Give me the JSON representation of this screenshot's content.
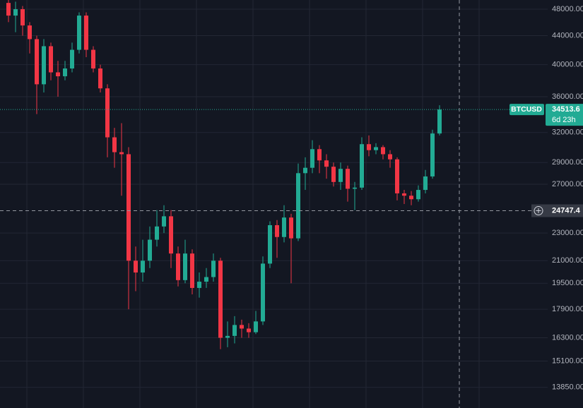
{
  "chart_data": {
    "type": "candlestick",
    "symbol": "BTCUSD",
    "last_price_label": "34513.6",
    "countdown": "6d 23h",
    "crosshair": {
      "value": 24747.4,
      "label": "24747.4"
    },
    "log_scale": true,
    "grid": true,
    "up_color": "#22ab94",
    "down_color": "#f23645",
    "ylim": [
      12940,
      49470
    ],
    "yticks": [
      {
        "value": 48000,
        "label": "48000.00"
      },
      {
        "value": 44000,
        "label": "44000.00"
      },
      {
        "value": 40000,
        "label": "40000.00"
      },
      {
        "value": 36000,
        "label": "36000.00"
      },
      {
        "value": 32000,
        "label": "32000.00"
      },
      {
        "value": 29000,
        "label": "29000.00"
      },
      {
        "value": 27000,
        "label": "27000.00"
      },
      {
        "value": 23000,
        "label": "23000.00"
      },
      {
        "value": 21000,
        "label": "21000.00"
      },
      {
        "value": 19500,
        "label": "19500.00"
      },
      {
        "value": 17900,
        "label": "17900.00"
      },
      {
        "value": 16300,
        "label": "16300.00"
      },
      {
        "value": 15100,
        "label": "15100.00"
      },
      {
        "value": 13850,
        "label": "13850.00"
      }
    ],
    "open": [
      49000,
      47000,
      48000,
      45500,
      43500,
      37500,
      42500,
      39000,
      38500,
      39500,
      42000,
      47000,
      42000,
      39500,
      37000,
      31500,
      30000,
      29800,
      21000,
      20200,
      21000,
      22500,
      23500,
      24300,
      21500,
      19700,
      21500,
      19200,
      19600,
      19900,
      21000,
      16300,
      16400,
      17000,
      16800,
      16600,
      17200,
      20800,
      23600,
      22700,
      24200,
      22600,
      28000,
      28500,
      30300,
      29200,
      28600,
      27200,
      28400,
      26600,
      26700,
      30800,
      30200,
      30500,
      29800,
      29300,
      26200,
      26000,
      25700,
      26500,
      27700,
      31900
    ],
    "high": [
      49500,
      49200,
      48500,
      46000,
      44000,
      43500,
      43000,
      40500,
      40500,
      43000,
      47500,
      47500,
      42500,
      40000,
      37500,
      32500,
      33000,
      30500,
      22000,
      22500,
      23500,
      24800,
      25200,
      24800,
      22000,
      22500,
      21800,
      20200,
      20500,
      21500,
      21200,
      17200,
      17500,
      17300,
      17100,
      17800,
      21300,
      23900,
      24000,
      25200,
      24500,
      28900,
      29500,
      31200,
      30700,
      29800,
      29000,
      29000,
      28700,
      27200,
      31500,
      31700,
      30900,
      30700,
      30200,
      29500,
      26500,
      26400,
      26900,
      28300,
      32300,
      35000
    ],
    "low": [
      46000,
      44500,
      44000,
      41500,
      34000,
      36500,
      38000,
      36000,
      38000,
      39000,
      41500,
      41000,
      39000,
      36500,
      29500,
      28500,
      26000,
      17900,
      19000,
      19600,
      20500,
      22000,
      23000,
      20500,
      19300,
      19500,
      18800,
      18600,
      19200,
      19600,
      15700,
      15800,
      16000,
      16300,
      16300,
      16500,
      17000,
      20500,
      21200,
      22300,
      19500,
      22400,
      26500,
      28000,
      28000,
      27500,
      26800,
      26500,
      25500,
      24800,
      26500,
      29600,
      29800,
      29300,
      28500,
      25600,
      25300,
      25200,
      25500,
      26200,
      27500,
      31700
    ],
    "close": [
      47000,
      48000,
      45500,
      43500,
      37500,
      42500,
      39000,
      38500,
      39500,
      42000,
      47000,
      42000,
      39500,
      37000,
      31500,
      30000,
      29800,
      21000,
      20200,
      21000,
      22500,
      23500,
      24300,
      21500,
      19700,
      21500,
      19200,
      19600,
      19900,
      21000,
      16300,
      16400,
      17000,
      16800,
      16600,
      17200,
      20800,
      23600,
      22700,
      24200,
      22600,
      28000,
      28500,
      30300,
      29200,
      28600,
      27200,
      28400,
      26600,
      26700,
      30800,
      30200,
      30500,
      29800,
      29300,
      26200,
      26000,
      25700,
      26500,
      27700,
      31900,
      34513.6
    ]
  }
}
